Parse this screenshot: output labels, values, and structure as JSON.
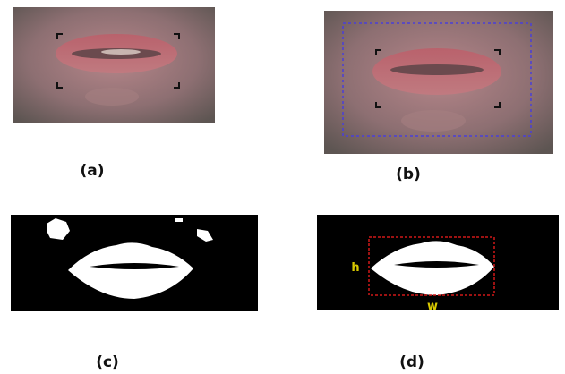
{
  "panels": [
    {
      "label": "(a)"
    },
    {
      "label": "(b)"
    },
    {
      "label": "(c)"
    },
    {
      "label": "(d)"
    }
  ],
  "annotations": {
    "height": "h",
    "width": "w"
  }
}
